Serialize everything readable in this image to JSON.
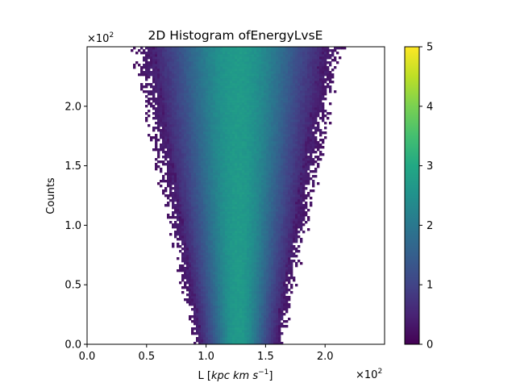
{
  "chart_data": {
    "type": "heatmap",
    "title": "2D Histogram ofEnergyLvsE",
    "xlabel_main": "L [",
    "xlabel_math": "kpc km s",
    "xlabel_sup": "−1",
    "xlabel_close": "]",
    "ylabel": "Counts",
    "x_exponent_base": "×10",
    "x_exponent_power": "2",
    "y_exponent_base": "×10",
    "y_exponent_power": "2",
    "xlim": [
      0,
      2.5
    ],
    "ylim": [
      0,
      2.5
    ],
    "x_ticks": [
      0.0,
      0.5,
      1.0,
      1.5,
      2.0
    ],
    "x_tick_labels": [
      "0.0",
      "0.5",
      "1.0",
      "1.5",
      "2.0"
    ],
    "y_ticks": [
      0.0,
      0.5,
      1.0,
      1.5,
      2.0
    ],
    "y_tick_labels": [
      "0.0",
      "0.5",
      "1.0",
      "1.5",
      "2.0"
    ],
    "colorbar": {
      "min": 0,
      "max": 5,
      "ticks": [
        0,
        1,
        2,
        3,
        4,
        5
      ],
      "tick_labels": [
        "0",
        "1",
        "2",
        "3",
        "4",
        "5"
      ],
      "colormap": "viridis"
    },
    "density_shape": {
      "center_x": 1.27,
      "half_width_at_y0": 0.35,
      "half_width_at_ymax": 0.82,
      "peak_value": 2.7
    }
  }
}
